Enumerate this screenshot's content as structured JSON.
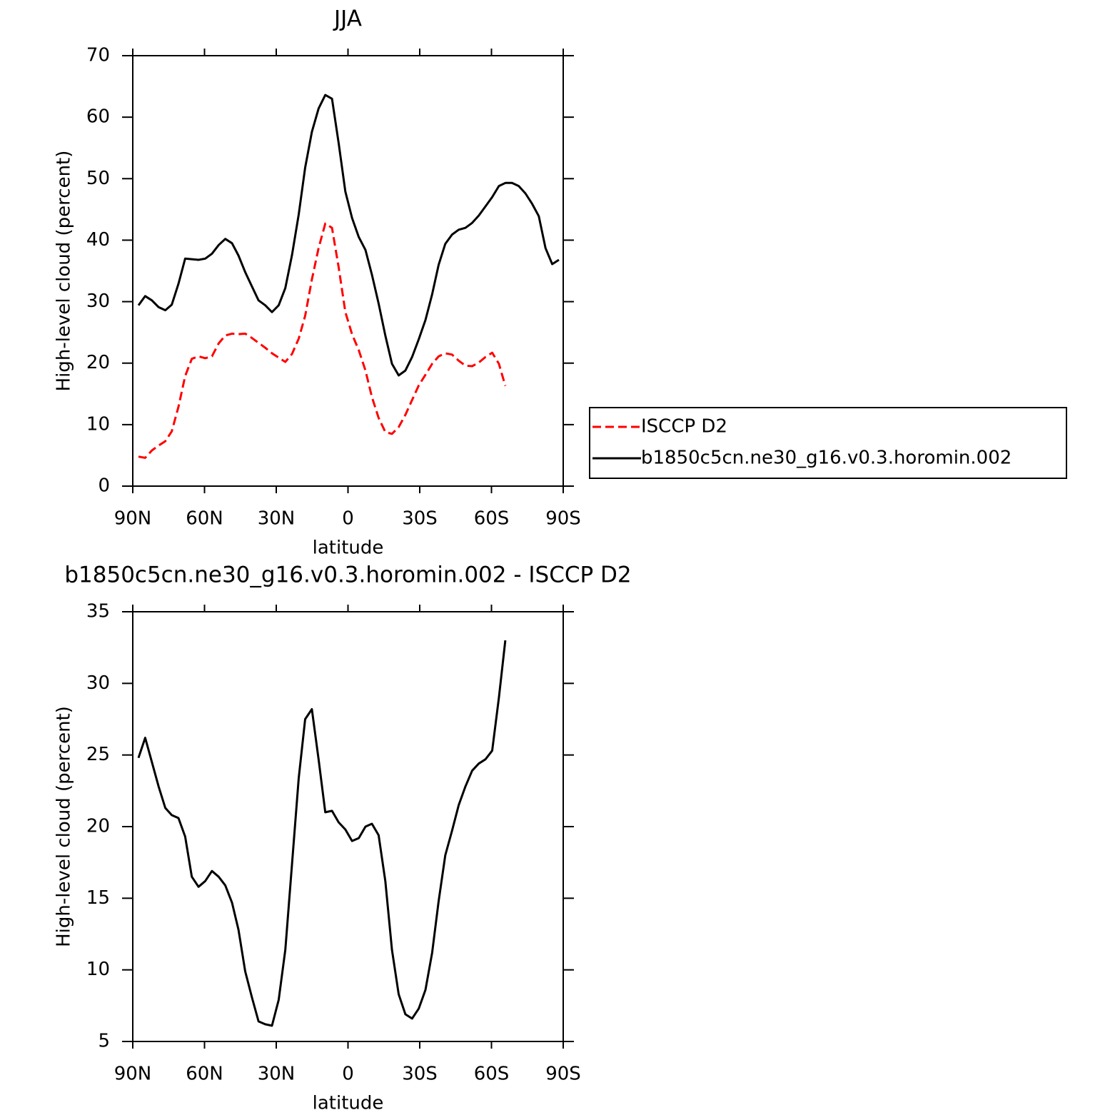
{
  "chart_data": [
    {
      "type": "line",
      "title": "JJA",
      "xlabel": "latitude",
      "ylabel": "High-level cloud (percent)",
      "x": [
        87.6,
        84.8,
        82.0,
        79.2,
        76.4,
        73.7,
        70.9,
        68.1,
        65.3,
        62.5,
        59.7,
        56.9,
        54.1,
        51.3,
        48.5,
        45.8,
        43.0,
        40.2,
        37.4,
        34.6,
        31.8,
        29.0,
        26.2,
        23.4,
        20.6,
        17.9,
        15.1,
        12.3,
        9.5,
        6.7,
        3.9,
        1.1,
        -1.7,
        -4.5,
        -7.3,
        -10.0,
        -12.8,
        -15.6,
        -18.4,
        -21.2,
        -24.0,
        -26.8,
        -29.6,
        -32.4,
        -35.2,
        -37.9,
        -40.7,
        -43.5,
        -46.3,
        -49.1,
        -51.9,
        -54.7,
        -57.5,
        -60.3,
        -63.1,
        -65.8,
        -68.6,
        -71.4,
        -74.2,
        -77.0,
        -79.8,
        -82.6,
        -85.4,
        -88.2
      ],
      "series": [
        {
          "name": "ISCCP D2",
          "color": "#ff0000",
          "style": "dashed",
          "values": [
            4.8,
            4.6,
            5.8,
            6.6,
            7.3,
            8.9,
            12.9,
            17.9,
            20.7,
            21.1,
            20.8,
            21.1,
            23.2,
            24.5,
            24.8,
            24.7,
            24.8,
            24.1,
            23.3,
            22.5,
            21.6,
            20.9,
            20.2,
            21.5,
            24.0,
            27.7,
            33.6,
            38.7,
            42.7,
            42.0,
            35.6,
            28.3,
            24.7,
            22.1,
            18.8,
            14.5,
            11.1,
            8.8,
            8.5,
            9.6,
            11.6,
            14.0,
            16.4,
            18.1,
            19.9,
            21.1,
            21.6,
            21.4,
            20.4,
            19.6,
            19.5,
            20.1,
            21.0,
            21.7,
            19.9,
            16.3,
            null,
            null,
            null,
            null,
            null,
            null,
            null,
            null
          ]
        },
        {
          "name": "b1850c5cn.ne30_g16.v0.3.horomin.002",
          "color": "#000000",
          "style": "solid",
          "values": [
            29.4,
            30.9,
            30.2,
            29.1,
            28.6,
            29.5,
            32.9,
            37.0,
            36.9,
            36.8,
            37.0,
            37.8,
            39.2,
            40.2,
            39.5,
            37.5,
            34.8,
            32.5,
            30.2,
            29.4,
            28.3,
            29.4,
            32.2,
            37.6,
            44.2,
            51.8,
            57.6,
            61.4,
            63.6,
            63.0,
            55.8,
            47.9,
            43.6,
            40.5,
            38.4,
            34.4,
            29.7,
            24.5,
            19.9,
            18.0,
            18.8,
            21.0,
            23.9,
            27.0,
            31.2,
            36.0,
            39.4,
            40.9,
            41.7,
            42.0,
            42.8,
            44.0,
            45.5,
            47.0,
            48.8,
            49.3,
            49.3,
            48.8,
            47.6,
            45.9,
            43.9,
            38.7,
            36.1,
            36.8
          ]
        }
      ],
      "xlim": [
        90,
        -90
      ],
      "xticks": [
        {
          "value": 90,
          "label": "90N"
        },
        {
          "value": 60,
          "label": "60N"
        },
        {
          "value": 30,
          "label": "30N"
        },
        0,
        {
          "value": -30,
          "label": "30S"
        },
        {
          "value": -60,
          "label": "60S"
        },
        {
          "value": -90,
          "label": "90S"
        }
      ],
      "ylim": [
        0,
        70
      ],
      "yticks": [
        0,
        10,
        20,
        30,
        40,
        50,
        60,
        70
      ],
      "legend": "right"
    },
    {
      "type": "line",
      "title": "b1850c5cn.ne30_g16.v0.3.horomin.002 - ISCCP D2",
      "xlabel": "latitude",
      "ylabel": "High-level cloud (percent)",
      "x": [
        87.6,
        84.8,
        82.0,
        79.2,
        76.4,
        73.7,
        70.9,
        68.1,
        65.3,
        62.5,
        59.7,
        56.9,
        54.1,
        51.3,
        48.5,
        45.8,
        43.0,
        40.2,
        37.4,
        34.6,
        31.8,
        29.0,
        26.2,
        23.4,
        20.6,
        17.9,
        15.1,
        12.3,
        9.5,
        6.7,
        3.9,
        1.1,
        -1.7,
        -4.5,
        -7.3,
        -10.0,
        -12.8,
        -15.6,
        -18.4,
        -21.2,
        -24.0,
        -26.8,
        -29.6,
        -32.4,
        -35.2,
        -37.9,
        -40.7,
        -43.5,
        -46.3,
        -49.1,
        -51.9,
        -54.7,
        -57.5,
        -60.3,
        -63.1,
        -65.8,
        -68.6,
        -71.4,
        -74.2,
        -77.0,
        -79.8,
        -82.6,
        -85.4,
        -88.2
      ],
      "color": "#000000",
      "values": [
        24.8,
        26.2,
        24.5,
        22.8,
        21.3,
        20.8,
        20.6,
        19.3,
        16.5,
        15.8,
        16.2,
        16.9,
        16.5,
        15.9,
        14.7,
        12.8,
        9.9,
        8.1,
        6.4,
        6.2,
        6.1,
        7.9,
        11.4,
        17.4,
        23.4,
        27.5,
        28.2,
        24.7,
        21.0,
        21.1,
        20.3,
        19.8,
        19.0,
        19.2,
        20.0,
        20.2,
        19.4,
        16.2,
        11.4,
        8.3,
        6.9,
        6.6,
        7.3,
        8.6,
        11.2,
        14.8,
        18.0,
        19.7,
        21.5,
        22.8,
        23.9,
        24.4,
        24.7,
        25.3,
        29.0,
        33.0,
        null,
        null,
        null,
        null,
        null,
        null,
        null,
        null
      ],
      "xlim": [
        90,
        -90
      ],
      "xticks": [
        {
          "value": 90,
          "label": "90N"
        },
        {
          "value": 60,
          "label": "60N"
        },
        {
          "value": 30,
          "label": "30N"
        },
        0,
        {
          "value": -30,
          "label": "30S"
        },
        {
          "value": -60,
          "label": "60S"
        },
        {
          "value": -90,
          "label": "90S"
        }
      ],
      "ylim": [
        5,
        35
      ],
      "yticks": [
        5,
        10,
        15,
        20,
        25,
        30,
        35
      ]
    }
  ]
}
